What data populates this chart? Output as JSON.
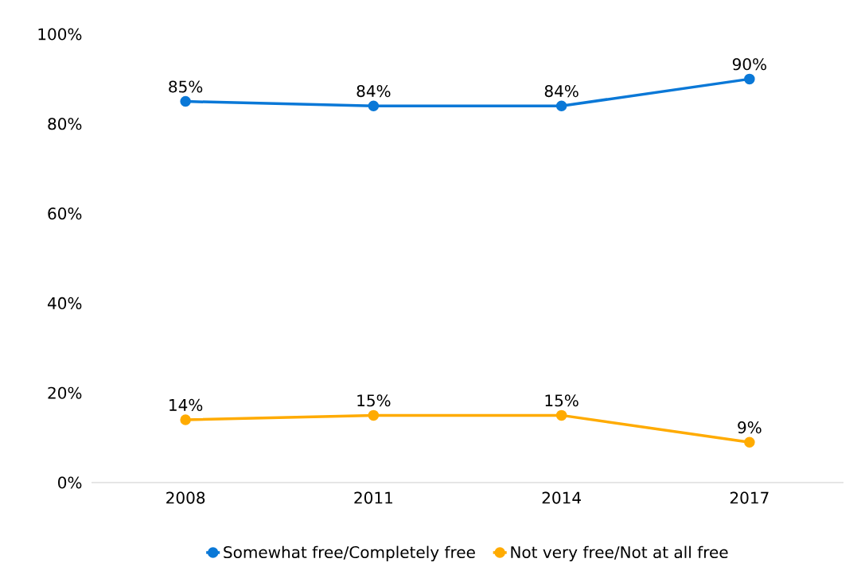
{
  "chart_data": {
    "type": "line",
    "categories": [
      "2008",
      "2011",
      "2014",
      "2017"
    ],
    "series": [
      {
        "name": "Somewhat free/Completely free",
        "color": "#0a78d7",
        "values": [
          85,
          84,
          84,
          90
        ],
        "value_labels": [
          "85%",
          "84%",
          "84%",
          "90%"
        ]
      },
      {
        "name": "Not very free/Not at all free",
        "color": "#ffab00",
        "values": [
          14,
          15,
          15,
          9
        ],
        "value_labels": [
          "14%",
          "15%",
          "15%",
          "9%"
        ]
      }
    ],
    "ylim": [
      0,
      100
    ],
    "yticks": [
      {
        "value": 0,
        "label": "0%"
      },
      {
        "value": 20,
        "label": "20%"
      },
      {
        "value": 40,
        "label": "40%"
      },
      {
        "value": 60,
        "label": "60%"
      },
      {
        "value": 80,
        "label": "80%"
      },
      {
        "value": 100,
        "label": "100%"
      }
    ],
    "legend": "bottom",
    "marker": "circle",
    "line_style": "solid"
  }
}
